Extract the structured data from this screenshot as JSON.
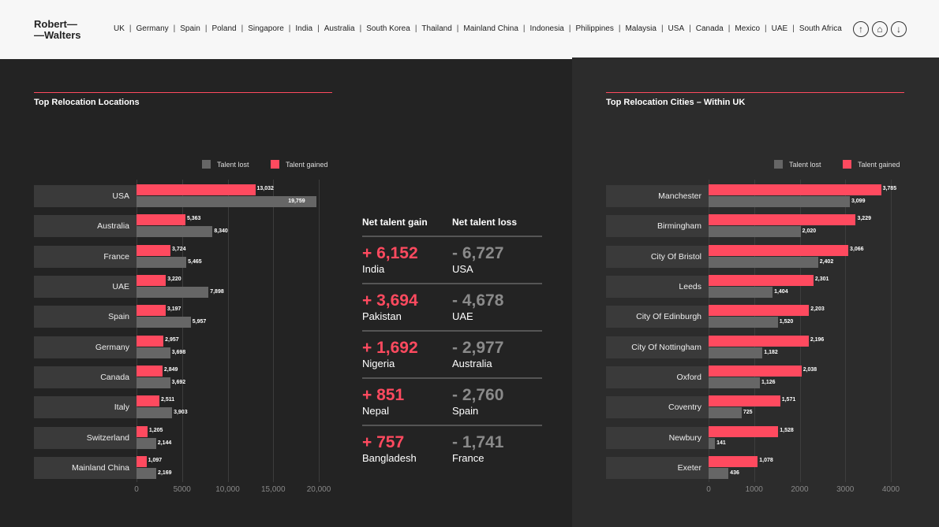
{
  "header": {
    "logo_line1": "Robert—",
    "logo_line2": "—Walters",
    "nav": [
      "UK",
      "Germany",
      "Spain",
      "Poland",
      "Singapore",
      "India",
      "Australia",
      "South Korea",
      "Thailand",
      "Mainland China",
      "Indonesia",
      "Philippines",
      "Malaysia",
      "USA",
      "Canada",
      "Mexico",
      "UAE",
      "South Africa"
    ],
    "icons": [
      "arrow-up-icon",
      "home-icon",
      "arrow-down-icon"
    ]
  },
  "colors": {
    "gained": "#ff4a5f",
    "lost": "#666666",
    "accent": "#ff4a5f"
  },
  "net": {
    "gain_header": "Net talent gain",
    "loss_header": "Net talent loss",
    "rows": [
      {
        "gain": "+ 6,152",
        "gain_country": "India",
        "loss": "- 6,727",
        "loss_country": "USA"
      },
      {
        "gain": "+ 3,694",
        "gain_country": "Pakistan",
        "loss": "- 4,678",
        "loss_country": "UAE"
      },
      {
        "gain": "+ 1,692",
        "gain_country": "Nigeria",
        "loss": "- 2,977",
        "loss_country": "Australia"
      },
      {
        "gain": "+ 851",
        "gain_country": "Nepal",
        "loss": "- 2,760",
        "loss_country": "Spain"
      },
      {
        "gain": "+ 757",
        "gain_country": "Bangladesh",
        "loss": "- 1,741",
        "loss_country": "France"
      }
    ]
  },
  "chart_data": [
    {
      "type": "bar",
      "title": "Top Relocation Locations",
      "legend": [
        "Talent lost",
        "Talent gained"
      ],
      "legend_position": "top-right",
      "categories": [
        "USA",
        "Australia",
        "France",
        "UAE",
        "Spain",
        "Germany",
        "Canada",
        "Italy",
        "Switzerland",
        "Mainland China"
      ],
      "series": [
        {
          "name": "Talent gained",
          "values": [
            13032,
            5363,
            3724,
            3220,
            3197,
            2957,
            2849,
            2511,
            1205,
            1097
          ],
          "labels": [
            "13,032",
            "5,363",
            "3,724",
            "3,220",
            "3,197",
            "2,957",
            "2,849",
            "2,511",
            "1,205",
            "1,097"
          ]
        },
        {
          "name": "Talent lost",
          "values": [
            19759,
            8340,
            5465,
            7898,
            5957,
            3698,
            3692,
            3903,
            2144,
            2169
          ],
          "labels": [
            "19,759",
            "8,340",
            "5,465",
            "7,898",
            "5,957",
            "3,698",
            "3,692",
            "3,903",
            "2,144",
            "2,169"
          ]
        }
      ],
      "xlim": [
        0,
        20000
      ],
      "ticks": [
        0,
        5000,
        10000,
        15000,
        20000
      ],
      "tick_labels": [
        "0",
        "5000",
        "10,000",
        "15,000",
        "20,000"
      ]
    },
    {
      "type": "bar",
      "title": "Top Relocation Cities – Within UK",
      "legend": [
        "Talent lost",
        "Talent gained"
      ],
      "legend_position": "top-right",
      "categories": [
        "Manchester",
        "Birmingham",
        "City Of Bristol",
        "Leeds",
        "City Of Edinburgh",
        "City Of Nottingham",
        "Oxford",
        "Coventry",
        "Newbury",
        "Exeter"
      ],
      "series": [
        {
          "name": "Talent gained",
          "values": [
            3785,
            3229,
            3066,
            2301,
            2203,
            2196,
            2038,
            1571,
            1528,
            1078
          ],
          "labels": [
            "3,785",
            "3,229",
            "3,066",
            "2,301",
            "2,203",
            "2,196",
            "2,038",
            "1,571",
            "1,528",
            "1,078"
          ]
        },
        {
          "name": "Talent lost",
          "values": [
            3099,
            2020,
            2402,
            1404,
            1520,
            1182,
            1126,
            725,
            141,
            436
          ],
          "labels": [
            "3,099",
            "2,020",
            "2,402",
            "1,404",
            "1,520",
            "1,182",
            "1,126",
            "725",
            "141",
            "436"
          ]
        }
      ],
      "xlim": [
        0,
        4000
      ],
      "ticks": [
        0,
        1000,
        2000,
        3000,
        4000
      ],
      "tick_labels": [
        "0",
        "1000",
        "2000",
        "3000",
        "4000"
      ]
    }
  ]
}
